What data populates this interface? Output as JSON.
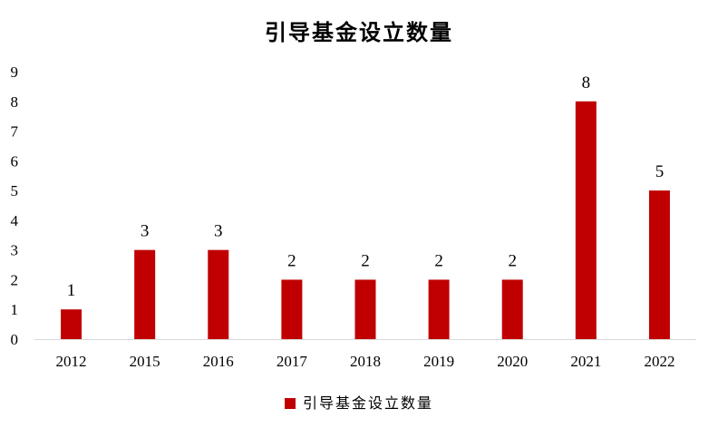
{
  "chart_data": {
    "type": "bar",
    "title": "引导基金设立数量",
    "categories": [
      "2012",
      "2015",
      "2016",
      "2017",
      "2018",
      "2019",
      "2020",
      "2021",
      "2022"
    ],
    "series": [
      {
        "name": "引导基金设立数量",
        "values": [
          1,
          3,
          3,
          2,
          2,
          2,
          2,
          8,
          5
        ],
        "color": "#c00000"
      }
    ],
    "xlabel": "",
    "ylabel": "",
    "ylim": [
      0,
      9
    ],
    "yticks": [
      0,
      1,
      2,
      3,
      4,
      5,
      6,
      7,
      8,
      9
    ],
    "grid": false,
    "data_labels": true,
    "legend_position": "bottom"
  }
}
